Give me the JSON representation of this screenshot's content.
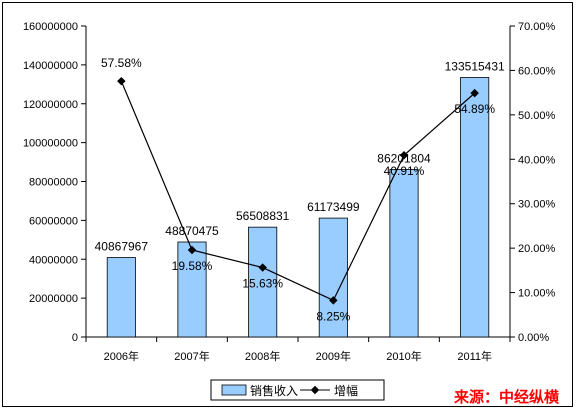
{
  "chart_data": {
    "type": "bar",
    "categories": [
      "2006年",
      "2007年",
      "2008年",
      "2009年",
      "2010年",
      "2011年"
    ],
    "series": [
      {
        "name": "销售收入",
        "type": "bar",
        "axis": "left",
        "color": "#99ccff",
        "values": [
          40867967,
          48870475,
          56508831,
          61173499,
          86201804,
          133515431
        ],
        "labels": [
          "40867967",
          "48870475",
          "56508831",
          "61173499",
          "86201804",
          "133515431"
        ]
      },
      {
        "name": "增幅",
        "type": "line",
        "axis": "right",
        "color": "#000000",
        "values": [
          57.58,
          19.58,
          15.63,
          8.25,
          40.91,
          54.89
        ],
        "labels": [
          "57.58%",
          "19.58%",
          "15.63%",
          "8.25%",
          "40.91%",
          "54.89%"
        ]
      }
    ],
    "ylim_left": [
      0,
      160000000
    ],
    "yticks_left": [
      "0",
      "20000000",
      "40000000",
      "60000000",
      "80000000",
      "100000000",
      "120000000",
      "140000000",
      "160000000"
    ],
    "ylim_right": [
      0,
      70
    ],
    "yticks_right": [
      "0.00%",
      "10.00%",
      "20.00%",
      "30.00%",
      "40.00%",
      "50.00%",
      "60.00%",
      "70.00%"
    ],
    "legend_position": "bottom",
    "grid": false
  },
  "source_text": "来源：中经纵横"
}
